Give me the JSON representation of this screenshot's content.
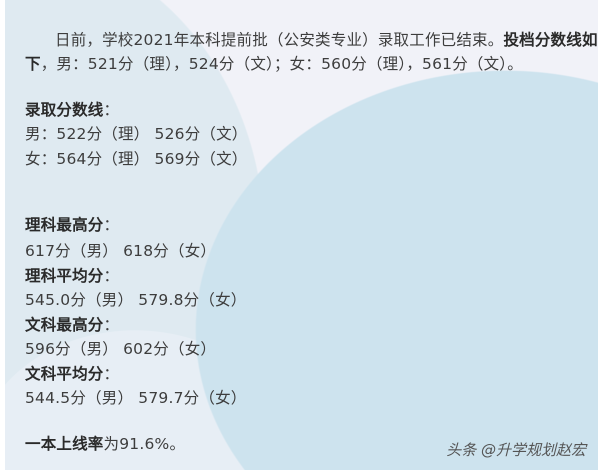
{
  "intro": {
    "line1_normal": "日前，学校2021年本科提前批（公安类专业）录取工作已结束。",
    "line1_bold": "投档分数线如",
    "line2_bold": "下",
    "line2_normal": "，男：521分（理），524分（文）；女：560分（理），561分（文）。"
  },
  "admission": {
    "heading": "录取分数线",
    "colon": "：",
    "male": "男：522分（理）  526分（文）",
    "female": "女：564分（理）  569分（文）"
  },
  "stats": [
    {
      "heading": "理科最高分",
      "value": "617分（男） 618分（女）"
    },
    {
      "heading": "理科平均分",
      "value": "545.0分（男） 579.8分（女）"
    },
    {
      "heading": "文科最高分",
      "value": "596分（男） 602分（女）"
    },
    {
      "heading": "文科平均分",
      "value": "544.5分（男） 579.7分（女）"
    }
  ],
  "rate": {
    "bold": "一本上线率",
    "normal": "为91.6%。"
  },
  "watermark": "头条 @升学规划赵宏",
  "colors": {
    "background": "#f1f2f8",
    "blob": "#cde3ee",
    "text": "#3d3d3d"
  }
}
